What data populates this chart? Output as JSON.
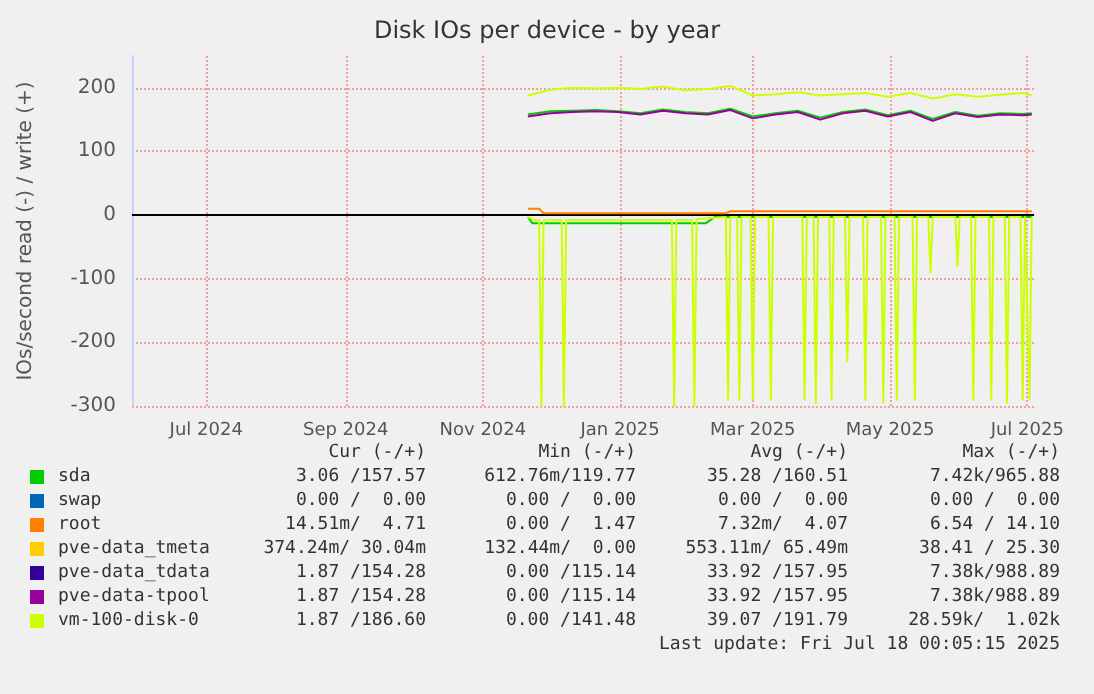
{
  "chart_data": {
    "type": "line",
    "title": "Disk IOs per device - by year",
    "ylabel": "IOs/second read (-) / write (+)",
    "xlim": [
      "2024-05-29",
      "2025-07-04"
    ],
    "xticks": [
      {
        "value": "2024-07-01",
        "label": "Jul 2024"
      },
      {
        "value": "2024-09-01",
        "label": "Sep 2024"
      },
      {
        "value": "2024-11-01",
        "label": "Nov 2024"
      },
      {
        "value": "2025-01-01",
        "label": "Jan 2025"
      },
      {
        "value": "2025-03-01",
        "label": "Mar 2025"
      },
      {
        "value": "2025-05-01",
        "label": "May 2025"
      },
      {
        "value": "2025-07-01",
        "label": "Jul 2025"
      }
    ],
    "ylim": [
      -300,
      250
    ],
    "yticks": [
      -300,
      -200,
      -100,
      0,
      100,
      200
    ],
    "grid": true,
    "legend": "bottom",
    "marker": "none",
    "line_style": "solid",
    "ref_lines": [
      {
        "axis": "y",
        "value": 0,
        "color": "#000000"
      }
    ],
    "series": [
      {
        "name": "sda",
        "color": "#00cc00",
        "x": [
          "2024-11-21",
          "2024-12-01",
          "2024-12-11",
          "2024-12-21",
          "2024-12-31",
          "2025-01-10",
          "2025-01-20",
          "2025-01-30",
          "2025-02-09",
          "2025-02-19",
          "2025-03-01",
          "2025-03-11",
          "2025-03-21",
          "2025-03-31",
          "2025-04-10",
          "2025-04-20",
          "2025-04-30",
          "2025-05-10",
          "2025-05-20",
          "2025-05-30",
          "2025-06-09",
          "2025-06-19",
          "2025-06-29",
          "2025-07-03"
        ],
        "values": [
          158,
          163,
          164,
          165,
          163,
          160,
          166,
          162,
          160,
          167,
          155,
          160,
          164,
          153,
          162,
          166,
          157,
          164,
          151,
          162,
          156,
          160,
          159,
          160
        ]
      },
      {
        "name": "swap",
        "color": "#0066b3"
      },
      {
        "name": "root",
        "color": "#ff8000",
        "x": [
          "2024-11-21",
          "2024-11-26",
          "2024-11-28",
          "2025-02-17",
          "2025-02-19",
          "2025-07-03"
        ],
        "values": [
          10,
          10,
          3,
          3,
          6,
          6
        ]
      },
      {
        "name": "pve-data_tmeta",
        "color": "#ffcc00"
      },
      {
        "name": "pve-data_tdata",
        "color": "#330099"
      },
      {
        "name": "pve-data-tpool",
        "color": "#990099",
        "x": [
          "2024-11-21",
          "2024-12-01",
          "2024-12-11",
          "2024-12-21",
          "2024-12-31",
          "2025-01-10",
          "2025-01-20",
          "2025-01-30",
          "2025-02-09",
          "2025-02-19",
          "2025-03-01",
          "2025-03-11",
          "2025-03-21",
          "2025-03-31",
          "2025-04-10",
          "2025-04-20",
          "2025-04-30",
          "2025-05-10",
          "2025-05-20",
          "2025-05-30",
          "2025-06-09",
          "2025-06-19",
          "2025-06-29",
          "2025-07-03"
        ],
        "values": [
          155,
          160,
          162,
          163,
          162,
          158,
          164,
          160,
          158,
          165,
          152,
          158,
          162,
          150,
          160,
          164,
          155,
          162,
          148,
          160,
          154,
          158,
          157,
          158
        ]
      },
      {
        "name": "vm-100-disk-0",
        "color": "#ccff00",
        "x": [
          "2024-11-21",
          "2024-12-01",
          "2024-12-11",
          "2024-12-21",
          "2024-12-31",
          "2025-01-10",
          "2025-01-20",
          "2025-01-30",
          "2025-02-09",
          "2025-02-19",
          "2025-03-01",
          "2025-03-11",
          "2025-03-21",
          "2025-03-31",
          "2025-04-10",
          "2025-04-20",
          "2025-04-30",
          "2025-05-10",
          "2025-05-20",
          "2025-05-30",
          "2025-06-09",
          "2025-06-19",
          "2025-06-29",
          "2025-07-03"
        ],
        "values": [
          188,
          197,
          200,
          199,
          200,
          198,
          202,
          196,
          198,
          203,
          188,
          190,
          193,
          188,
          190,
          192,
          186,
          192,
          183,
          190,
          186,
          189,
          192,
          188
        ]
      },
      {
        "color": "#00cc00",
        "x": [
          "2024-11-21",
          "2024-11-23",
          "2025-02-08",
          "2025-02-12",
          "2025-07-03"
        ],
        "values": [
          -3,
          -13,
          -13,
          -3,
          -3
        ]
      },
      {
        "color": "#ccff00",
        "x": [
          "2024-11-21",
          "2024-11-24",
          "2024-11-26",
          "2024-11-27",
          "2024-11-28",
          "2024-12-06",
          "2024-12-07",
          "2024-12-08",
          "2025-01-24",
          "2025-01-25",
          "2025-01-26",
          "2025-02-02",
          "2025-02-03",
          "2025-02-04",
          "2025-02-17",
          "2025-02-18",
          "2025-02-19",
          "2025-02-22",
          "2025-02-23",
          "2025-02-24",
          "2025-02-28",
          "2025-03-01",
          "2025-03-02",
          "2025-03-08",
          "2025-03-09",
          "2025-03-10",
          "2025-03-23",
          "2025-03-24",
          "2025-03-25",
          "2025-03-28",
          "2025-03-29",
          "2025-03-30",
          "2025-04-04",
          "2025-04-05",
          "2025-04-06",
          "2025-04-11",
          "2025-04-12",
          "2025-04-13",
          "2025-04-19",
          "2025-04-20",
          "2025-04-21",
          "2025-04-27",
          "2025-04-28",
          "2025-04-29",
          "2025-05-03",
          "2025-05-04",
          "2025-05-05",
          "2025-05-11",
          "2025-05-12",
          "2025-05-13",
          "2025-05-18",
          "2025-05-19",
          "2025-05-20",
          "2025-05-30",
          "2025-05-31",
          "2025-06-01",
          "2025-06-06",
          "2025-06-07",
          "2025-06-08",
          "2025-06-14",
          "2025-06-15",
          "2025-06-16",
          "2025-06-21",
          "2025-06-22",
          "2025-06-23",
          "2025-06-28",
          "2025-06-29",
          "2025-06-30",
          "2025-07-02",
          "2025-07-03"
        ],
        "values": [
          -3,
          -8,
          -8,
          -300,
          -8,
          -8,
          -300,
          -8,
          -8,
          -300,
          -8,
          -8,
          -300,
          -6,
          -3,
          -290,
          -3,
          -3,
          -290,
          -3,
          -3,
          -290,
          -3,
          -3,
          -290,
          -3,
          -3,
          -290,
          -3,
          -3,
          -295,
          -3,
          -3,
          -290,
          -3,
          -3,
          -230,
          -3,
          -3,
          -290,
          -3,
          -3,
          -295,
          -3,
          -3,
          -290,
          -3,
          -3,
          -290,
          -3,
          -3,
          -90,
          -3,
          -3,
          -80,
          -3,
          -3,
          -290,
          -3,
          -3,
          -290,
          -3,
          -3,
          -295,
          -3,
          -3,
          -290,
          -3,
          -290,
          -3
        ]
      }
    ],
    "annotations": [
      "Cur (-/+)",
      "Min (-/+)",
      "Avg (-/+)",
      "Max (-/+)",
      "3.06 /157.57",
      "612.76m/119.77",
      "35.28 /160.51",
      "7.42k/965.88",
      "0.00 /  0.00",
      "0.00 /  0.00",
      "0.00 /  0.00",
      "0.00 /  0.00",
      "14.51m/  4.71",
      "0.00 /  1.47",
      "7.32m/  4.07",
      "6.54 / 14.10",
      "374.24m/ 30.04m",
      "132.44m/  0.00",
      "553.11m/ 65.49m",
      "38.41 / 25.30",
      "1.87 /154.28",
      "0.00 /115.14",
      "33.92 /157.95",
      "7.38k/988.89",
      "1.87 /154.28",
      "0.00 /115.14",
      "33.92 /157.95",
      "7.38k/988.89",
      "1.87 /186.60",
      "0.00 /141.48",
      "39.07 /191.79",
      "28.59k/  1.02k",
      "Last update: Fri Jul 18 00:05:15 2025"
    ]
  }
}
